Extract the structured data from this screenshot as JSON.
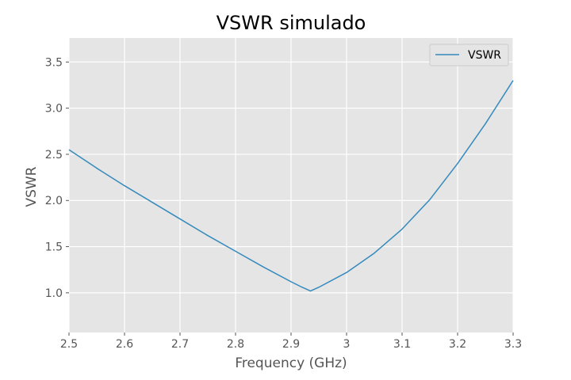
{
  "chart_data": {
    "type": "line",
    "title": "VSWR simulado",
    "xlabel": "Frequency (GHz)",
    "ylabel": "VSWR",
    "xlim": [
      2.5,
      3.3
    ],
    "ylim": [
      0.57,
      3.76
    ],
    "xticks": [
      2.5,
      2.6,
      2.7,
      2.8,
      2.9,
      3.0,
      3.1,
      3.2,
      3.3
    ],
    "xtick_labels": [
      "2.5",
      "2.6",
      "2.7",
      "2.8",
      "2.9",
      "3",
      "3.1",
      "3.2",
      "3.3"
    ],
    "yticks": [
      1.0,
      1.5,
      2.0,
      2.5,
      3.0,
      3.5
    ],
    "ytick_labels": [
      "1.0",
      "1.5",
      "2.0",
      "2.5",
      "3.0",
      "3.5"
    ],
    "grid": true,
    "legend_position": "top-right",
    "colors": {
      "background": "#e5e5e5",
      "grid": "#ffffff",
      "line": "#348abd"
    },
    "series": [
      {
        "name": "VSWR",
        "x": [
          2.5,
          2.55,
          2.6,
          2.65,
          2.7,
          2.75,
          2.8,
          2.85,
          2.9,
          2.92,
          2.935,
          2.95,
          3.0,
          3.05,
          3.1,
          3.15,
          3.2,
          3.25,
          3.3
        ],
        "y": [
          2.55,
          2.35,
          2.16,
          1.98,
          1.8,
          1.62,
          1.45,
          1.28,
          1.12,
          1.06,
          1.02,
          1.06,
          1.22,
          1.43,
          1.69,
          2.01,
          2.4,
          2.83,
          3.3
        ]
      }
    ]
  }
}
